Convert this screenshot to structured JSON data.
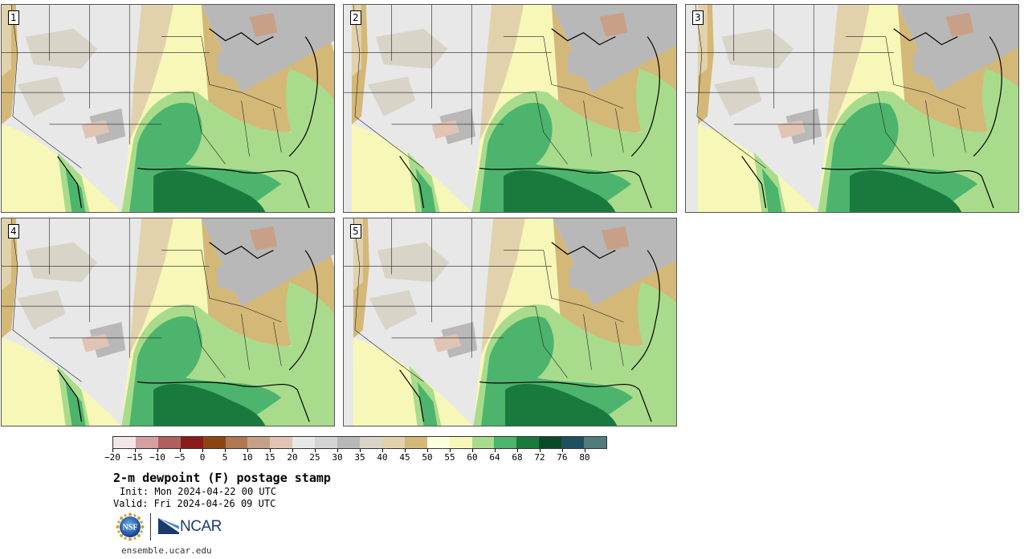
{
  "title": "2-m dewpoint (F) postage stamp",
  "init": "Init: Mon 2024-04-22 00 UTC",
  "valid": "Valid: Fri 2024-04-26 09 UTC",
  "footer_url": "ensemble.ucar.edu",
  "logos": {
    "nsf_text": "NSF",
    "ncar_text": "NCAR"
  },
  "panels": [
    {
      "label": "1"
    },
    {
      "label": "2"
    },
    {
      "label": "3"
    },
    {
      "label": "4"
    },
    {
      "label": "5"
    }
  ],
  "colorbar": {
    "colors": [
      "#f2e6e6",
      "#d4a0a0",
      "#b05f5f",
      "#8b1a1a",
      "#8b4513",
      "#b07850",
      "#c8a088",
      "#e0c4b4",
      "#e8e8e8",
      "#d4d4d4",
      "#b8b8b8",
      "#d8d4c8",
      "#e2d2ac",
      "#d4b878",
      "#fdfde0",
      "#f7f7b8",
      "#a8dc8c",
      "#4cb46c",
      "#1a7a3e",
      "#0a4a28",
      "#1e5060",
      "#507a7c"
    ],
    "ticks": [
      "−20",
      "−15",
      "−10",
      "−5",
      "0",
      "5",
      "10",
      "15",
      "20",
      "25",
      "30",
      "35",
      "40",
      "45",
      "50",
      "55",
      "60",
      "64",
      "68",
      "72",
      "76",
      "80"
    ]
  }
}
